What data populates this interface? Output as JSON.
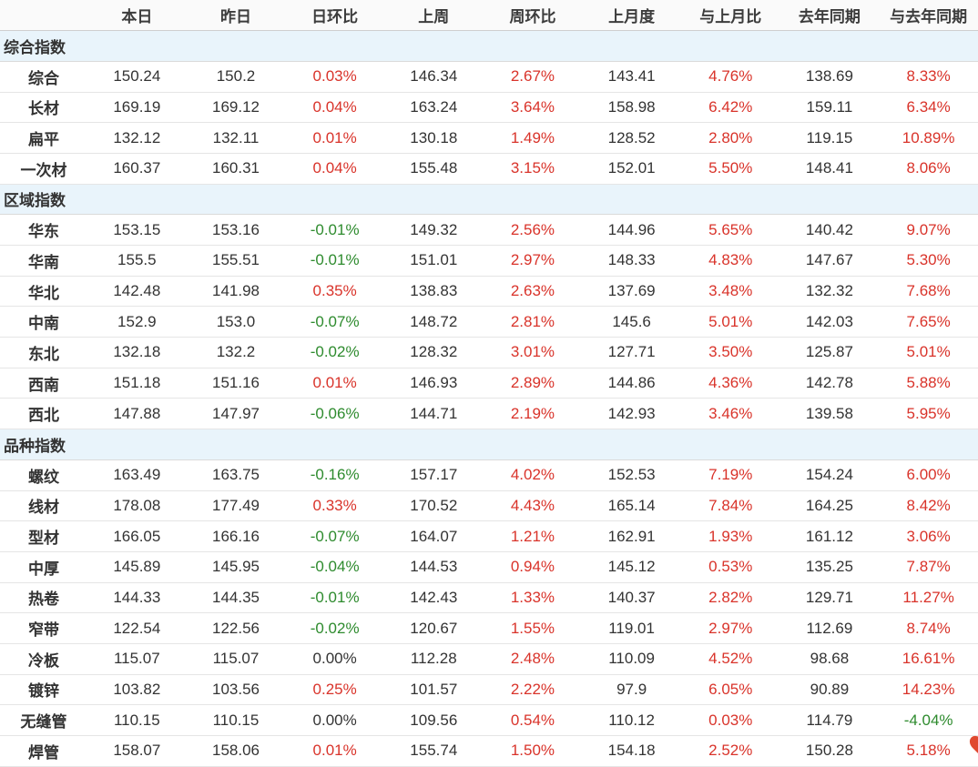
{
  "table": {
    "corner_label": "",
    "columns": [
      "本日",
      "昨日",
      "日环比",
      "上周",
      "周环比",
      "上月度",
      "与上月比",
      "去年同期",
      "与去年同期"
    ],
    "sections": [
      {
        "title": "综合指数",
        "rows": [
          {
            "label": "综合",
            "values": [
              "150.24",
              "150.2",
              "0.03%",
              "146.34",
              "2.67%",
              "143.41",
              "4.76%",
              "138.69",
              "8.33%"
            ]
          },
          {
            "label": "长材",
            "values": [
              "169.19",
              "169.12",
              "0.04%",
              "163.24",
              "3.64%",
              "158.98",
              "6.42%",
              "159.11",
              "6.34%"
            ]
          },
          {
            "label": "扁平",
            "values": [
              "132.12",
              "132.11",
              "0.01%",
              "130.18",
              "1.49%",
              "128.52",
              "2.80%",
              "119.15",
              "10.89%"
            ]
          },
          {
            "label": "一次材",
            "values": [
              "160.37",
              "160.31",
              "0.04%",
              "155.48",
              "3.15%",
              "152.01",
              "5.50%",
              "148.41",
              "8.06%"
            ]
          }
        ]
      },
      {
        "title": "区域指数",
        "rows": [
          {
            "label": "华东",
            "values": [
              "153.15",
              "153.16",
              "-0.01%",
              "149.32",
              "2.56%",
              "144.96",
              "5.65%",
              "140.42",
              "9.07%"
            ]
          },
          {
            "label": "华南",
            "values": [
              "155.5",
              "155.51",
              "-0.01%",
              "151.01",
              "2.97%",
              "148.33",
              "4.83%",
              "147.67",
              "5.30%"
            ]
          },
          {
            "label": "华北",
            "values": [
              "142.48",
              "141.98",
              "0.35%",
              "138.83",
              "2.63%",
              "137.69",
              "3.48%",
              "132.32",
              "7.68%"
            ]
          },
          {
            "label": "中南",
            "values": [
              "152.9",
              "153.0",
              "-0.07%",
              "148.72",
              "2.81%",
              "145.6",
              "5.01%",
              "142.03",
              "7.65%"
            ]
          },
          {
            "label": "东北",
            "values": [
              "132.18",
              "132.2",
              "-0.02%",
              "128.32",
              "3.01%",
              "127.71",
              "3.50%",
              "125.87",
              "5.01%"
            ]
          },
          {
            "label": "西南",
            "values": [
              "151.18",
              "151.16",
              "0.01%",
              "146.93",
              "2.89%",
              "144.86",
              "4.36%",
              "142.78",
              "5.88%"
            ]
          },
          {
            "label": "西北",
            "values": [
              "147.88",
              "147.97",
              "-0.06%",
              "144.71",
              "2.19%",
              "142.93",
              "3.46%",
              "139.58",
              "5.95%"
            ]
          }
        ]
      },
      {
        "title": "品种指数",
        "rows": [
          {
            "label": "螺纹",
            "values": [
              "163.49",
              "163.75",
              "-0.16%",
              "157.17",
              "4.02%",
              "152.53",
              "7.19%",
              "154.24",
              "6.00%"
            ]
          },
          {
            "label": "线材",
            "values": [
              "178.08",
              "177.49",
              "0.33%",
              "170.52",
              "4.43%",
              "165.14",
              "7.84%",
              "164.25",
              "8.42%"
            ]
          },
          {
            "label": "型材",
            "values": [
              "166.05",
              "166.16",
              "-0.07%",
              "164.07",
              "1.21%",
              "162.91",
              "1.93%",
              "161.12",
              "3.06%"
            ]
          },
          {
            "label": "中厚",
            "values": [
              "145.89",
              "145.95",
              "-0.04%",
              "144.53",
              "0.94%",
              "145.12",
              "0.53%",
              "135.25",
              "7.87%"
            ]
          },
          {
            "label": "热卷",
            "values": [
              "144.33",
              "144.35",
              "-0.01%",
              "142.43",
              "1.33%",
              "140.37",
              "2.82%",
              "129.71",
              "11.27%"
            ]
          },
          {
            "label": "窄带",
            "values": [
              "122.54",
              "122.56",
              "-0.02%",
              "120.67",
              "1.55%",
              "119.01",
              "2.97%",
              "112.69",
              "8.74%"
            ]
          },
          {
            "label": "冷板",
            "values": [
              "115.07",
              "115.07",
              "0.00%",
              "112.28",
              "2.48%",
              "110.09",
              "4.52%",
              "98.68",
              "16.61%"
            ]
          },
          {
            "label": "镀锌",
            "values": [
              "103.82",
              "103.56",
              "0.25%",
              "101.57",
              "2.22%",
              "97.9",
              "6.05%",
              "90.89",
              "14.23%"
            ]
          },
          {
            "label": "无缝管",
            "values": [
              "110.15",
              "110.15",
              "0.00%",
              "109.56",
              "0.54%",
              "110.12",
              "0.03%",
              "114.79",
              "-4.04%"
            ]
          },
          {
            "label": "焊管",
            "values": [
              "158.07",
              "158.06",
              "0.01%",
              "155.74",
              "1.50%",
              "154.18",
              "2.52%",
              "150.28",
              "5.18%"
            ]
          }
        ]
      }
    ]
  },
  "colors": {
    "positive": "#d9332a",
    "negative": "#2e8b2e",
    "neutral": "#333333",
    "section_bg": "#e9f4fb"
  }
}
